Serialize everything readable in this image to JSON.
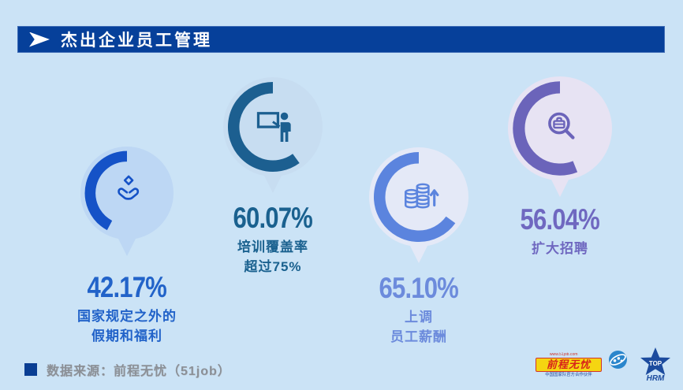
{
  "page": {
    "background_color": "#cbe3f6"
  },
  "header": {
    "title": "杰出企业员工管理",
    "bar_color": "#06409a"
  },
  "chart_data": {
    "type": "pie",
    "subtype": "donut-gauges",
    "title": "杰出企业员工管理",
    "units": "%",
    "legend_position": "none",
    "series": [
      {
        "name": "国家规定之外的假期和福利",
        "value": 42.17,
        "value_label": "42.17%",
        "label_lines": [
          "国家规定之外的",
          "假期和福利"
        ],
        "icon": "hands-gift-icon",
        "arc_color": "#1552c7",
        "bubble_color": "#bdd7f4",
        "text_color": "#2263c9"
      },
      {
        "name": "培训覆盖率超过75%",
        "value": 60.07,
        "value_label": "60.07%",
        "label_lines": [
          "培训覆盖率",
          "超过75%"
        ],
        "icon": "training-presenter-icon",
        "arc_color": "#1c5f90",
        "bubble_color": "#c7ddf1",
        "text_color": "#1a618f"
      },
      {
        "name": "上调员工薪酬",
        "value": 65.1,
        "value_label": "65.10%",
        "label_lines": [
          "上调",
          "员工薪酬"
        ],
        "icon": "salary-coins-icon",
        "arc_color": "#5b84de",
        "bubble_color": "#e4e9f7",
        "text_color": "#6c8bdc"
      },
      {
        "name": "扩大招聘",
        "value": 56.04,
        "value_label": "56.04%",
        "label_lines": [
          "扩大招聘"
        ],
        "icon": "recruitment-search-icon",
        "arc_color": "#6b64ba",
        "bubble_color": "#e7e3f3",
        "text_color": "#6f68c0"
      }
    ]
  },
  "footer": {
    "source_label": "数据来源：前程无忧（51job）",
    "logos": {
      "job51": {
        "url_text": "www.51job.com",
        "brand_text": "前程无忧",
        "tagline": "中国国家队官方合作伙伴",
        "box_color": "#f5d511",
        "text_color": "#d8231a"
      },
      "tophrm": {
        "top": "TOP",
        "bottom": "HRM",
        "color": "#1c4b9e"
      }
    }
  }
}
